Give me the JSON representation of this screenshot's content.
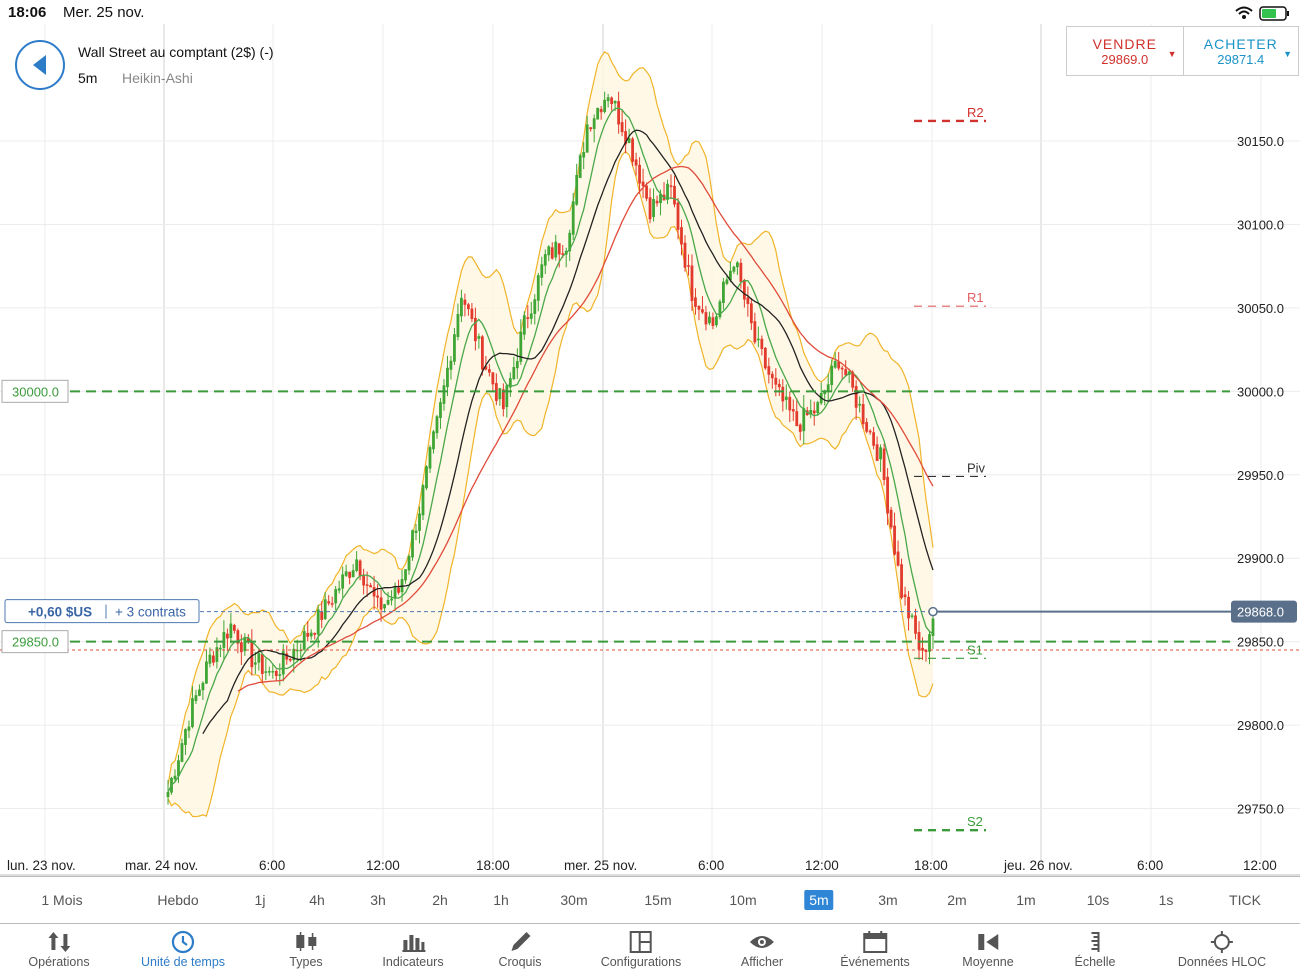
{
  "status": {
    "time": "18:06",
    "date": "Mer. 25 nov."
  },
  "header": {
    "title": "Wall Street au comptant (2$) (-)",
    "timeframe": "5m",
    "chart_type": "Heikin-Ashi"
  },
  "trade": {
    "sell_label": "VENDRE",
    "sell_price": "29869.0",
    "buy_label": "ACHETER",
    "buy_price": "29871.4",
    "sell_color": "#d0312d",
    "buy_color": "#1a93c7"
  },
  "chart_data": {
    "type": "candlestick",
    "title": "",
    "xlabel": "",
    "ylabel": "",
    "ylim": [
      29725,
      30225
    ],
    "price_ticks": [
      "30150.0",
      "30100.0",
      "30050.0",
      "30000.0",
      "29950.0",
      "29900.0",
      "29850.0",
      "29800.0",
      "29750.0"
    ],
    "time_ticks": [
      "lun. 23 nov.",
      "mar. 24 nov.",
      "6:00",
      "12:00",
      "18:00",
      "mer. 25 nov.",
      "6:00",
      "12:00",
      "18:00",
      "jeu. 26 nov.",
      "6:00",
      "12:00"
    ],
    "grid": true,
    "colors": {
      "up": "#3fa535",
      "down": "#e23b2e",
      "bollinger": "#f0b429",
      "ma_fast": "#4aa84a",
      "ma_mid": "#222222",
      "ma_slow": "#e04b3a"
    },
    "price_path": [
      [
        0,
        29760
      ],
      [
        6,
        29805
      ],
      [
        12,
        29840
      ],
      [
        18,
        29860
      ],
      [
        24,
        29840
      ],
      [
        30,
        29830
      ],
      [
        36,
        29845
      ],
      [
        42,
        29860
      ],
      [
        48,
        29880
      ],
      [
        54,
        29900
      ],
      [
        60,
        29870
      ],
      [
        66,
        29880
      ],
      [
        72,
        29930
      ],
      [
        78,
        29990
      ],
      [
        84,
        30060
      ],
      [
        90,
        30020
      ],
      [
        96,
        29990
      ],
      [
        102,
        30040
      ],
      [
        108,
        30080
      ],
      [
        114,
        30090
      ],
      [
        120,
        30160
      ],
      [
        126,
        30180
      ],
      [
        132,
        30150
      ],
      [
        138,
        30110
      ],
      [
        144,
        30120
      ],
      [
        150,
        30060
      ],
      [
        156,
        30040
      ],
      [
        162,
        30080
      ],
      [
        168,
        30030
      ],
      [
        174,
        30000
      ],
      [
        180,
        29980
      ],
      [
        186,
        29990
      ],
      [
        192,
        30020
      ],
      [
        198,
        29990
      ],
      [
        204,
        29960
      ],
      [
        210,
        29880
      ],
      [
        216,
        29840
      ],
      [
        219,
        29865
      ]
    ],
    "current_price": "29868.0",
    "levels": {
      "r2": {
        "label": "R2",
        "value": 30162
      },
      "r1": {
        "label": "R1",
        "value": 30051
      },
      "piv": {
        "label": "Piv",
        "value": 29949
      },
      "s1": {
        "label": "S1",
        "value": 29840
      },
      "s2": {
        "label": "S2",
        "value": 29737
      }
    },
    "alert_high": "30000.0",
    "alert_low": "29850.0",
    "position": {
      "pnl": "+0,60 $US",
      "size": "+ 3 contrats",
      "value": 29868
    },
    "stop_value": 29845
  },
  "timeframes": {
    "items": [
      "1 Mois",
      "Hebdo",
      "1j",
      "4h",
      "3h",
      "2h",
      "1h",
      "30m",
      "15m",
      "10m",
      "5m",
      "3m",
      "2m",
      "1m",
      "10s",
      "1s",
      "TICK"
    ],
    "active": "5m"
  },
  "toolbar": {
    "operations": "Opérations",
    "timeunit": "Unité de temps",
    "types": "Types",
    "indicators": "Indicateurs",
    "sketch": "Croquis",
    "configurations": "Configurations",
    "display": "Afficher",
    "events": "Événements",
    "average": "Moyenne",
    "scale": "Échelle",
    "hloc": "Données HLOC"
  }
}
